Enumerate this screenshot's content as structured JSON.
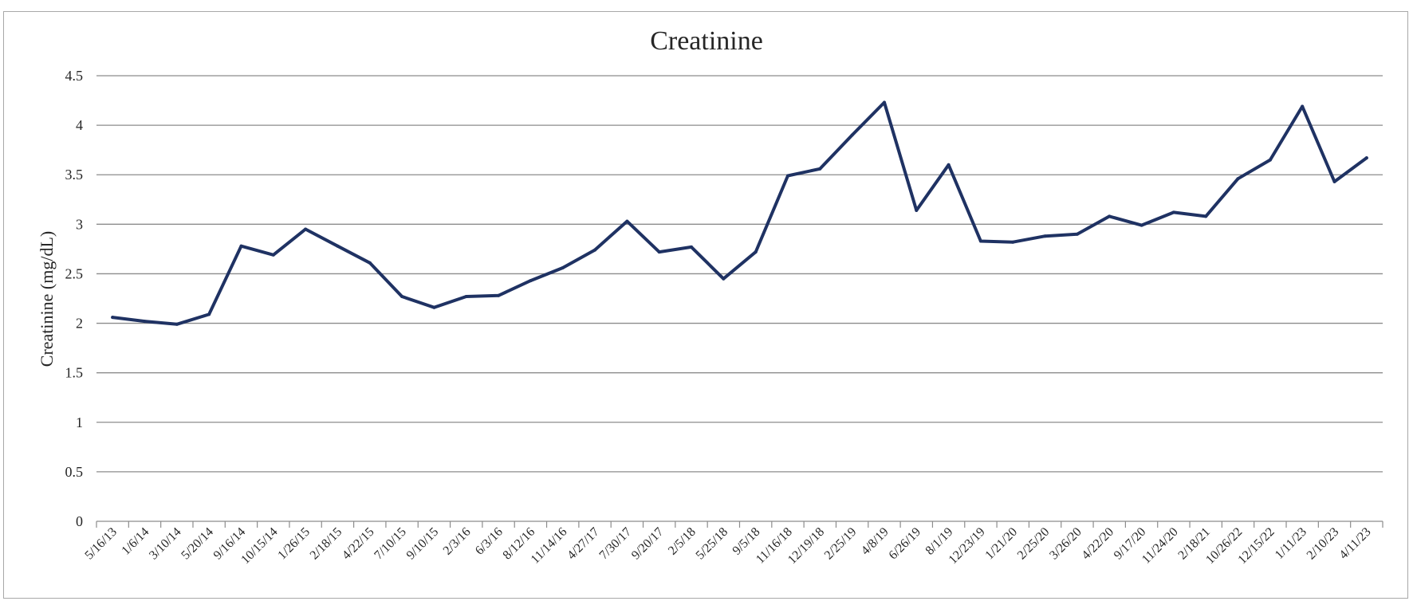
{
  "chart_data": {
    "type": "line",
    "title": "Creatinine",
    "xlabel": "",
    "ylabel": "Creatinine (mg/dL)",
    "ylim": [
      0,
      4.5
    ],
    "yticks": [
      "0",
      "0.5",
      "1",
      "1.5",
      "2",
      "2.5",
      "3",
      "3.5",
      "4",
      "4.5"
    ],
    "grid": true,
    "legend": "none",
    "line_color": "#1f3263",
    "categories": [
      "5/16/13",
      "1/6/14",
      "3/10/14",
      "5/20/14",
      "9/16/14",
      "10/15/14",
      "1/26/15",
      "2/18/15",
      "4/22/15",
      "7/10/15",
      "9/10/15",
      "2/3/16",
      "6/3/16",
      "8/12/16",
      "11/14/16",
      "4/27/17",
      "7/30/17",
      "9/20/17",
      "2/5/18",
      "5/25/18",
      "9/5/18",
      "11/16/18",
      "12/19/18",
      "2/25/19",
      "4/8/19",
      "6/26/19",
      "8/1/19",
      "12/23/19",
      "1/21/20",
      "2/25/20",
      "3/26/20",
      "4/22/20",
      "9/17/20",
      "11/24/20",
      "2/18/21",
      "10/26/22",
      "12/15/22",
      "1/11/23",
      "2/10/23",
      "4/11/23"
    ],
    "series": [
      {
        "values": [
          2.06,
          2.02,
          1.99,
          2.09,
          2.78,
          2.69,
          2.95,
          2.78,
          2.61,
          2.27,
          2.16,
          2.27,
          2.28,
          2.43,
          2.56,
          2.74,
          3.03,
          2.72,
          2.77,
          2.45,
          2.72,
          3.49,
          3.56,
          3.9,
          4.23,
          3.14,
          3.6,
          2.83,
          2.82,
          2.88,
          2.9,
          3.08,
          2.99,
          3.12,
          3.08,
          3.46,
          3.65,
          4.19,
          3.43,
          3.67
        ]
      }
    ]
  }
}
